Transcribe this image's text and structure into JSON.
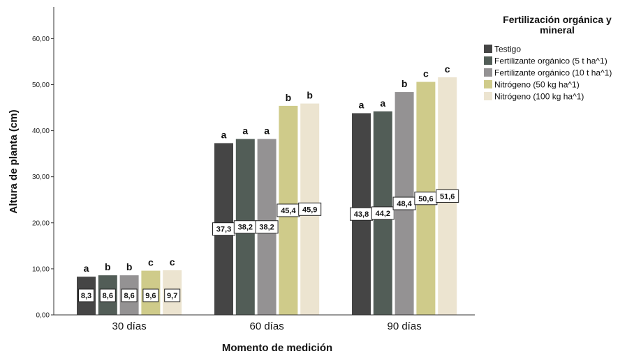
{
  "chart_data": {
    "type": "bar",
    "xlabel": "Momento de medición",
    "ylabel": "Altura de planta (cm)",
    "ylim": [
      0,
      65
    ],
    "yticks": [
      "0,00",
      "10,00",
      "20,00",
      "30,00",
      "40,00",
      "50,00",
      "60,00"
    ],
    "categories": [
      "30 días",
      "60 días",
      "90 días"
    ],
    "legend_title": "Fertilización orgánica y mineral",
    "legend_position": "top-right",
    "grid": false,
    "series": [
      {
        "name": "Testigo",
        "color": "#454545",
        "values": [
          8.3,
          37.3,
          43.8
        ],
        "labels": [
          "8,3",
          "37,3",
          "43,8"
        ],
        "letters": [
          "a",
          "a",
          "a"
        ]
      },
      {
        "name": "Fertilizante orgánico (5 t ha^1)",
        "color": "#525d57",
        "values": [
          8.6,
          38.2,
          44.2
        ],
        "labels": [
          "8,6",
          "38,2",
          "44,2"
        ],
        "letters": [
          "b",
          "a",
          "a"
        ]
      },
      {
        "name": "Fertilizante orgánico (10 t ha^1)",
        "color": "#949293",
        "values": [
          8.6,
          38.2,
          48.4
        ],
        "labels": [
          "8,6",
          "38,2",
          "48,4"
        ],
        "letters": [
          "b",
          "a",
          "b"
        ]
      },
      {
        "name": "Nitrógeno (50 kg ha^1)",
        "color": "#cfcb8a",
        "values": [
          9.6,
          45.4,
          50.6
        ],
        "labels": [
          "9,6",
          "45,4",
          "50,6"
        ],
        "letters": [
          "c",
          "b",
          "c"
        ]
      },
      {
        "name": "Nitrógeno (100 kg ha^1)",
        "color": "#ece4d0",
        "values": [
          9.7,
          45.9,
          51.6
        ],
        "labels": [
          "9,7",
          "45,9",
          "51,6"
        ],
        "letters": [
          "c",
          "b",
          "c"
        ]
      }
    ]
  }
}
